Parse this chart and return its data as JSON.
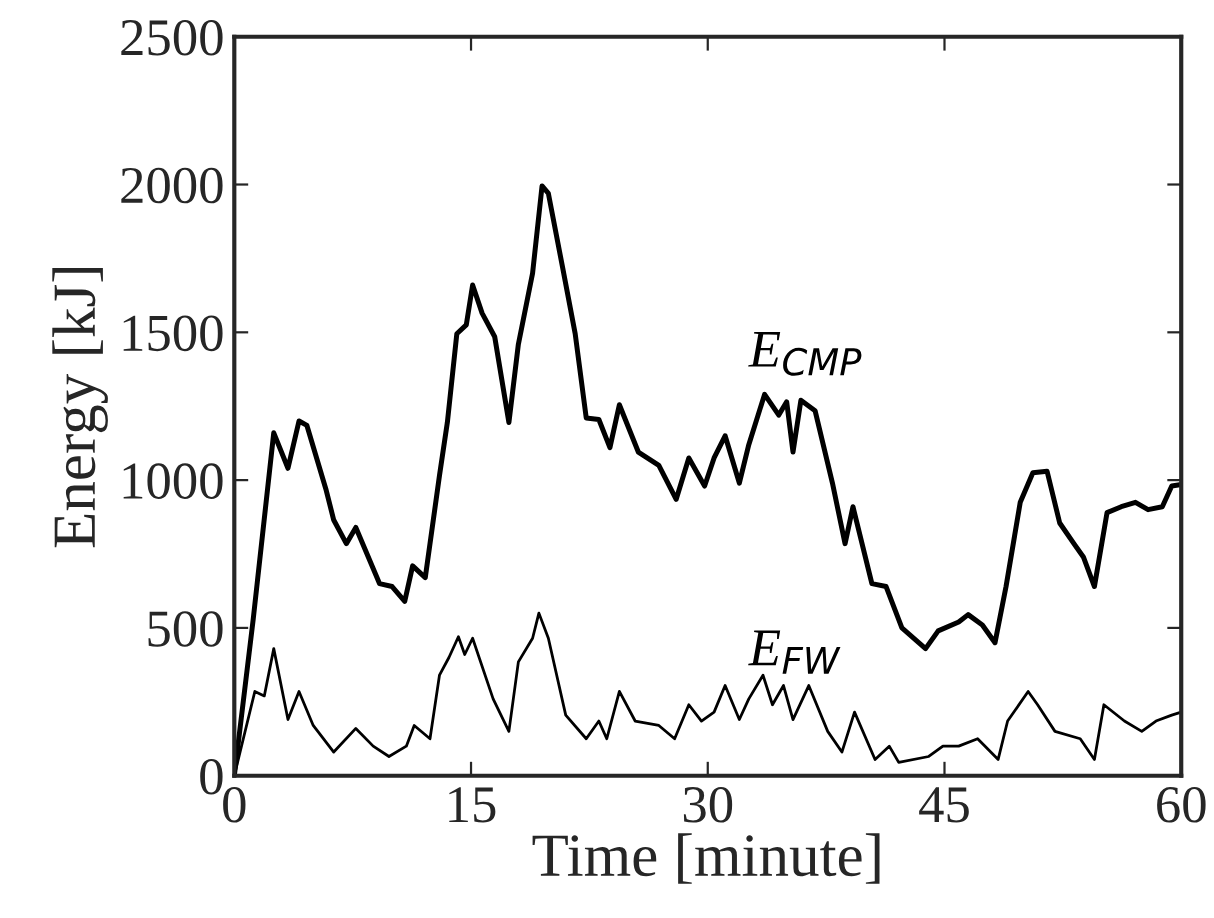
{
  "chart_data": {
    "type": "line",
    "xlabel": "Time [minute]",
    "ylabel": "Energy [kJ]",
    "xlim": [
      0,
      60
    ],
    "xticks": [
      0,
      15,
      30,
      45,
      60
    ],
    "ylim": [
      0,
      2500
    ],
    "yticks": [
      0,
      500,
      1000,
      1500,
      2000,
      2500
    ],
    "grid": false,
    "legend": false,
    "marker": "none",
    "line_style": "solid",
    "series": [
      {
        "name": "E$_{CMP}$",
        "color": "#000000",
        "x": [
          0,
          1.2,
          2.5,
          3.4,
          4.1,
          4.6,
          5.8,
          6.3,
          7.1,
          7.7,
          9.2,
          10.0,
          10.8,
          11.3,
          12.1,
          13.0,
          13.5,
          14.1,
          14.7,
          15.1,
          15.7,
          16.5,
          17.4,
          18.0,
          18.9,
          19.5,
          19.9,
          20.8,
          21.6,
          22.3,
          23.1,
          23.8,
          24.4,
          25.6,
          26.9,
          28.0,
          28.8,
          29.8,
          30.4,
          31.1,
          32.0,
          32.6,
          33.6,
          34.5,
          35.0,
          35.4,
          35.9,
          36.8,
          37.9,
          38.7,
          39.2,
          40.4,
          41.3,
          42.3,
          43.8,
          44.6,
          45.9,
          46.5,
          47.4,
          48.2,
          48.9,
          49.8,
          50.6,
          51.5,
          52.3,
          53.2,
          53.8,
          54.5,
          55.3,
          56.2,
          57.1,
          57.9,
          58.8,
          59.4,
          60
        ],
        "values": [
          0,
          530,
          1160,
          1040,
          1200,
          1185,
          970,
          865,
          785,
          840,
          650,
          640,
          590,
          710,
          670,
          1015,
          1195,
          1495,
          1525,
          1660,
          1565,
          1485,
          1195,
          1460,
          1700,
          1995,
          1970,
          1720,
          1495,
          1210,
          1205,
          1110,
          1255,
          1095,
          1050,
          935,
          1075,
          980,
          1075,
          1150,
          990,
          1120,
          1290,
          1220,
          1265,
          1095,
          1270,
          1235,
          990,
          785,
          910,
          650,
          640,
          500,
          430,
          490,
          520,
          545,
          510,
          450,
          640,
          925,
          1025,
          1030,
          855,
          785,
          740,
          640,
          890,
          910,
          925,
          900,
          910,
          980,
          985
        ]
      },
      {
        "name": "E$_{FW}$",
        "color": "#000000",
        "x": [
          0,
          1.3,
          1.9,
          2.5,
          3.4,
          4.1,
          5.0,
          6.3,
          7.7,
          8.8,
          9.8,
          10.9,
          11.4,
          12.4,
          13.0,
          13.6,
          14.2,
          14.6,
          15.1,
          16.4,
          17.4,
          18.0,
          18.9,
          19.3,
          19.9,
          21.0,
          22.3,
          23.1,
          23.6,
          24.4,
          25.4,
          26.9,
          27.9,
          28.8,
          29.6,
          30.4,
          31.1,
          32.0,
          32.6,
          33.5,
          34.1,
          34.8,
          35.4,
          36.4,
          37.6,
          38.5,
          39.3,
          40.6,
          41.5,
          42.1,
          44.0,
          44.9,
          45.9,
          47.1,
          48.4,
          49.0,
          50.3,
          50.9,
          52.0,
          53.6,
          54.5,
          55.1,
          56.4,
          57.5,
          58.4,
          59.4,
          60
        ],
        "values": [
          0,
          285,
          270,
          430,
          190,
          285,
          170,
          80,
          160,
          100,
          65,
          100,
          170,
          125,
          340,
          400,
          470,
          410,
          465,
          260,
          150,
          385,
          465,
          550,
          465,
          205,
          125,
          185,
          125,
          285,
          185,
          170,
          125,
          240,
          185,
          215,
          305,
          190,
          260,
          340,
          240,
          305,
          190,
          305,
          150,
          80,
          215,
          55,
          100,
          45,
          65,
          100,
          100,
          125,
          55,
          185,
          285,
          240,
          150,
          125,
          55,
          240,
          185,
          150,
          185,
          205,
          215
        ]
      }
    ]
  }
}
